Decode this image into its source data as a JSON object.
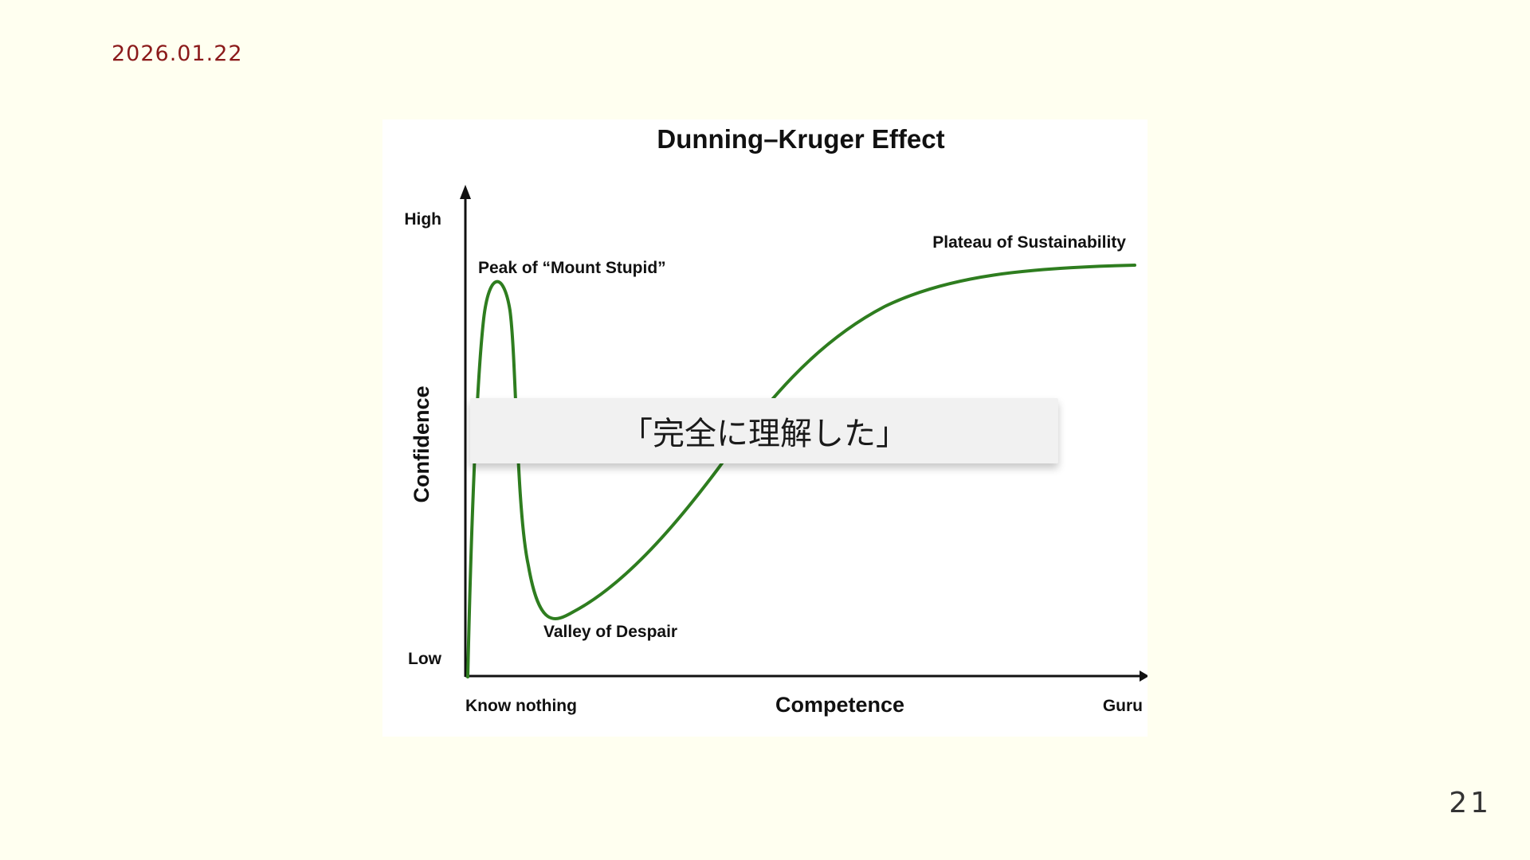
{
  "slide": {
    "date": "2026.01.22",
    "page_number": "21"
  },
  "diagram": {
    "title": "Dunning–Kruger Effect",
    "y_axis": {
      "label": "Confidence",
      "high": "High",
      "low": "Low"
    },
    "x_axis": {
      "label": "Competence",
      "start": "Know nothing",
      "end": "Guru"
    },
    "annotations": {
      "peak": "Peak of “Mount Stupid”",
      "valley": "Valley of Despair",
      "plateau": "Plateau of Sustainability"
    },
    "curve_color": "#2e7d1f"
  },
  "callout": {
    "text": "「完全に理解した」"
  }
}
